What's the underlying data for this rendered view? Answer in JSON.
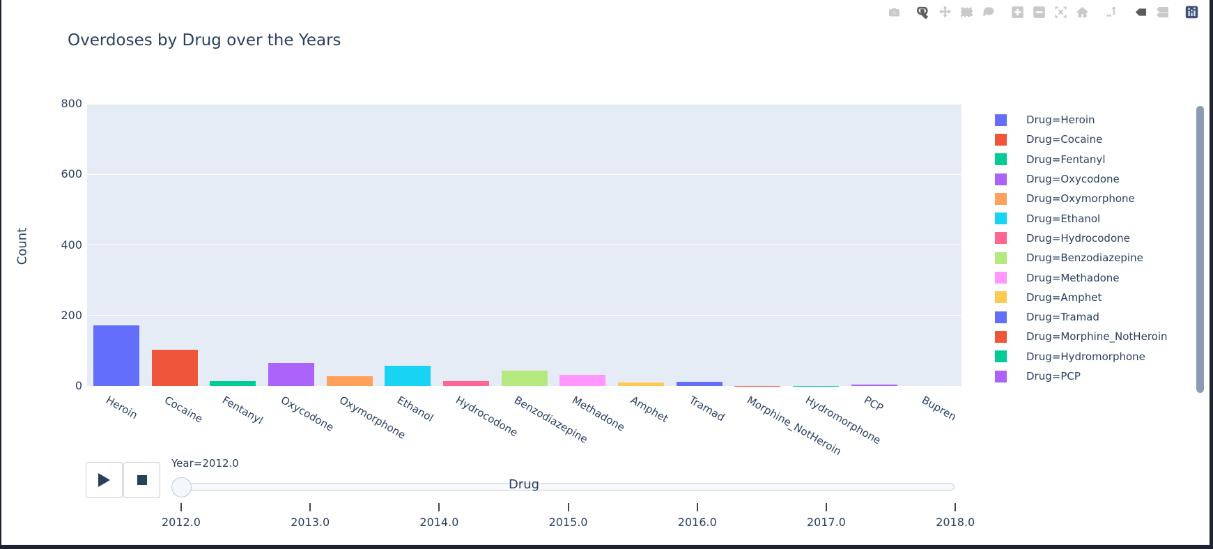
{
  "title": "Overdoses by Drug over the Years",
  "modebar": {
    "buttons": [
      {
        "name": "camera",
        "title": "Download plot as png",
        "active": false,
        "group_end": true
      },
      {
        "name": "zoom",
        "title": "Zoom",
        "active": true,
        "group_end": false
      },
      {
        "name": "pan",
        "title": "Pan",
        "active": false,
        "group_end": false
      },
      {
        "name": "box-select",
        "title": "Box select",
        "active": false,
        "group_end": false
      },
      {
        "name": "lasso-select",
        "title": "Lasso select",
        "active": false,
        "group_end": true
      },
      {
        "name": "zoom-in",
        "title": "Zoom in",
        "active": false,
        "group_end": false
      },
      {
        "name": "zoom-out",
        "title": "Zoom out",
        "active": false,
        "group_end": false
      },
      {
        "name": "autoscale",
        "title": "Autoscale",
        "active": false,
        "group_end": false
      },
      {
        "name": "home",
        "title": "Reset axes",
        "active": false,
        "group_end": true
      },
      {
        "name": "spike-lines",
        "title": "Toggle Spike Lines",
        "active": false,
        "group_end": true
      },
      {
        "name": "hover-closest",
        "title": "Show closest data on hover",
        "active": true,
        "group_end": false
      },
      {
        "name": "hover-compare",
        "title": "Compare data on hover",
        "active": false,
        "group_end": true
      },
      {
        "name": "plotly-logo",
        "title": "Produced with Plotly",
        "active": true,
        "group_end": false
      }
    ]
  },
  "chart_data": {
    "type": "bar",
    "title": "Overdoses by Drug over the Years",
    "xlabel": "Drug",
    "ylabel": "Count",
    "ylim": [
      0,
      800
    ],
    "yticks": [
      0,
      200,
      400,
      600,
      800
    ],
    "grid": true,
    "legend_position": "right",
    "frame": "Year=2012.0",
    "categories": [
      "Heroin",
      "Cocaine",
      "Fentanyl",
      "Oxycodone",
      "Oxymorphone",
      "Ethanol",
      "Hydrocodone",
      "Benzodiazepine",
      "Methadone",
      "Amphet",
      "Tramad",
      "Morphine_NotHeroin",
      "Hydromorphone",
      "PCP",
      "Bupren"
    ],
    "values": [
      171,
      102,
      13,
      66,
      28,
      57,
      13,
      44,
      31,
      9,
      12,
      1,
      1,
      3,
      0
    ],
    "colors": [
      "#636EFA",
      "#EF553B",
      "#00CC96",
      "#AB63FA",
      "#FFA15A",
      "#19D3F3",
      "#FF6692",
      "#B6E880",
      "#FF97FF",
      "#FECB52",
      "#636EFA",
      "#EF553B",
      "#00CC96",
      "#AB63FA",
      "#FFA15A"
    ]
  },
  "legend": {
    "items": [
      {
        "label": "Drug=Heroin",
        "color": "#636EFA"
      },
      {
        "label": "Drug=Cocaine",
        "color": "#EF553B"
      },
      {
        "label": "Drug=Fentanyl",
        "color": "#00CC96"
      },
      {
        "label": "Drug=Oxycodone",
        "color": "#AB63FA"
      },
      {
        "label": "Drug=Oxymorphone",
        "color": "#FFA15A"
      },
      {
        "label": "Drug=Ethanol",
        "color": "#19D3F3"
      },
      {
        "label": "Drug=Hydrocodone",
        "color": "#FF6692"
      },
      {
        "label": "Drug=Benzodiazepine",
        "color": "#B6E880"
      },
      {
        "label": "Drug=Methadone",
        "color": "#FF97FF"
      },
      {
        "label": "Drug=Amphet",
        "color": "#FECB52"
      },
      {
        "label": "Drug=Tramad",
        "color": "#636EFA"
      },
      {
        "label": "Drug=Morphine_NotHeroin",
        "color": "#EF553B"
      },
      {
        "label": "Drug=Hydromorphone",
        "color": "#00CC96"
      },
      {
        "label": "Drug=PCP",
        "color": "#AB63FA"
      }
    ]
  },
  "slider": {
    "frame_label": "Year=2012.0",
    "current_value": "2012.0",
    "handle_index": 0,
    "ticks": [
      "2012.0",
      "2013.0",
      "2014.0",
      "2015.0",
      "2016.0",
      "2017.0",
      "2018.0"
    ]
  },
  "colors": {
    "plot_bg": "#E5ECF6",
    "grid": "#FFFFFF",
    "text": "#2a3f5f",
    "scrollbar": "#8b9bb4",
    "window_edge": "#1d2430"
  }
}
